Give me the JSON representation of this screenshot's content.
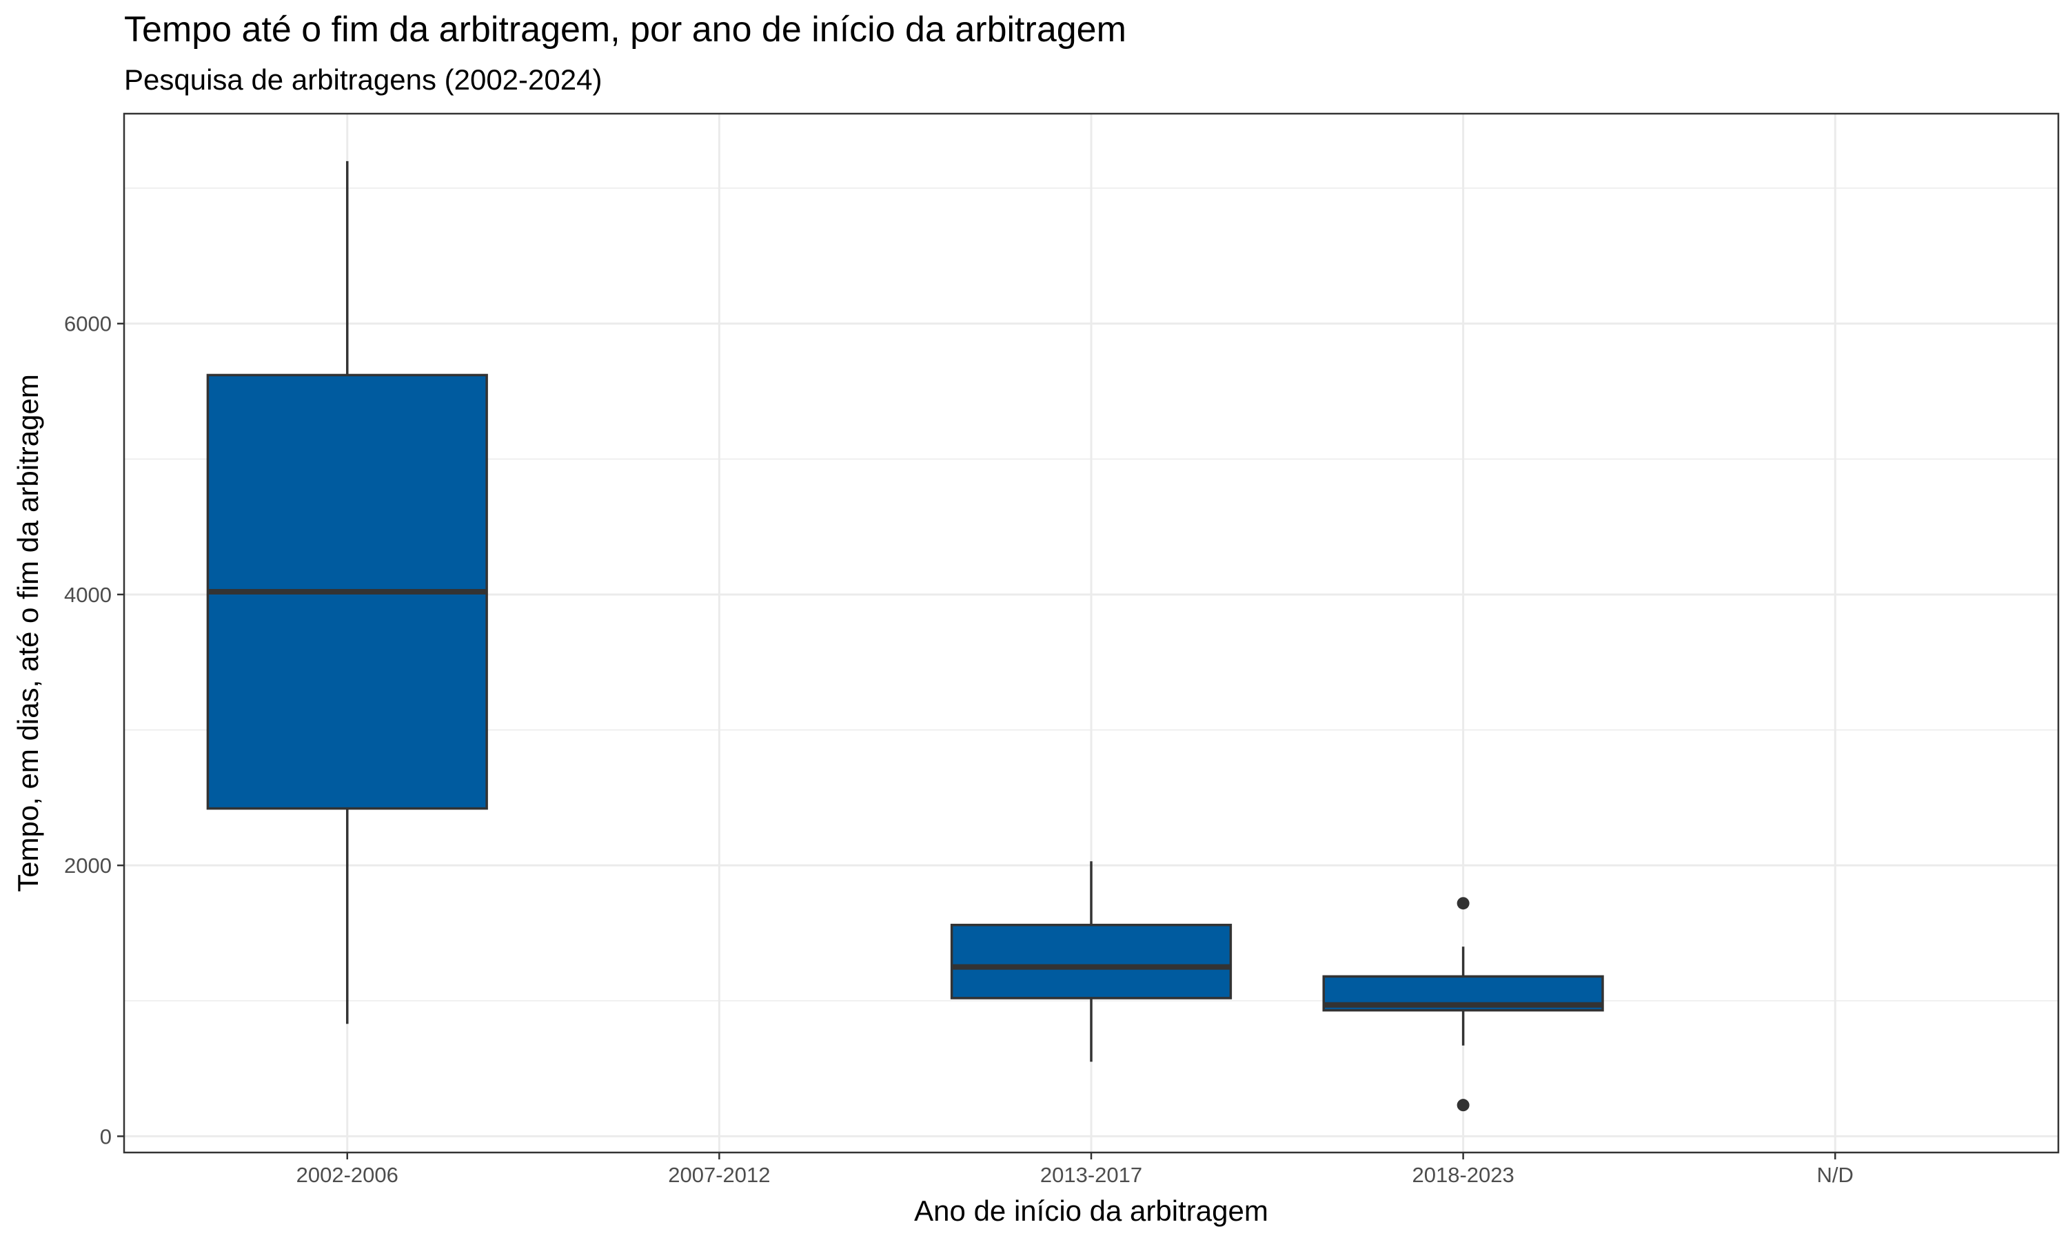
{
  "chart_data": {
    "type": "boxplot",
    "title": "Tempo até o fim da arbitragem, por ano de início da arbitragem",
    "subtitle": "Pesquisa de arbitragens (2002-2024)",
    "xlabel": "Ano de início da arbitragem",
    "ylabel": "Tempo, em dias, até o fim da arbitragem",
    "categories": [
      "2002-2006",
      "2007-2012",
      "2013-2017",
      "2018-2023",
      "N/D"
    ],
    "ylim": [
      -120,
      7550
    ],
    "yticks": [
      0,
      2000,
      4000,
      6000
    ],
    "grid": true,
    "fill_color": "#005B9F",
    "outline_color": "#333333",
    "boxes": [
      {
        "category": "2002-2006",
        "whisker_low": 830,
        "q1": 2420,
        "median": 4020,
        "q3": 5620,
        "whisker_high": 7200,
        "outliers": []
      },
      {
        "category": "2013-2017",
        "whisker_low": 550,
        "q1": 1020,
        "median": 1250,
        "q3": 1560,
        "whisker_high": 2030,
        "outliers": []
      },
      {
        "category": "2018-2023",
        "whisker_low": 670,
        "q1": 930,
        "median": 970,
        "q3": 1180,
        "whisker_high": 1400,
        "outliers": [
          1720,
          230
        ]
      }
    ]
  }
}
